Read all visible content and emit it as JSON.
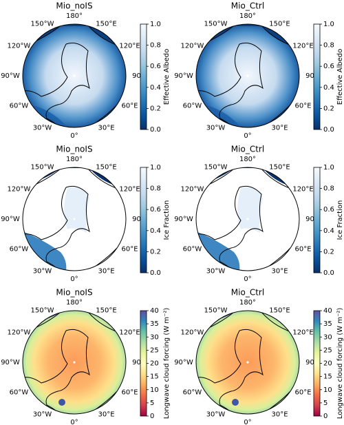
{
  "chart_data": [
    {
      "type": "polar-map",
      "title": "Mio_noIS",
      "colorbar_label": "Effective Albedo",
      "clim": [
        0,
        1
      ],
      "cticks": [
        {
          "value": 0,
          "label": "0.0"
        },
        0.2,
        0.4,
        0.6,
        0.8,
        {
          "value": 1,
          "label": "1.0"
        }
      ],
      "colormap": [
        "#08306b",
        "#08519c",
        "#2171b5",
        "#4292c6",
        "#6baed6",
        "#9ecae1",
        "#c6dbef",
        "#deebf7",
        "#f7fbff"
      ],
      "lon_labels": [
        "180°",
        "150°E",
        "120°E",
        "90°",
        "60°E",
        "30°E",
        "0°",
        "30°W",
        "60°W",
        "90°W",
        "120°W",
        "150°W"
      ]
    },
    {
      "type": "polar-map",
      "title": "Mio_Ctrl",
      "colorbar_label": "Effective Albedo",
      "clim": [
        0,
        1
      ],
      "cticks": [
        {
          "value": 0,
          "label": "0.0"
        },
        0.2,
        0.4,
        0.6,
        0.8,
        {
          "value": 1,
          "label": "1.0"
        }
      ],
      "colormap": [
        "#08306b",
        "#08519c",
        "#2171b5",
        "#4292c6",
        "#6baed6",
        "#9ecae1",
        "#c6dbef",
        "#deebf7",
        "#f7fbff"
      ],
      "lon_labels": [
        "180°",
        "150°E",
        "120°E",
        "90°",
        "60°E",
        "30°E",
        "0°",
        "30°W",
        "60°W",
        "90°W",
        "120°W",
        "150°W"
      ]
    },
    {
      "type": "polar-map",
      "title": "Mio_noIS",
      "colorbar_label": "Ice Fraction",
      "clim": [
        0,
        1
      ],
      "cticks": [
        {
          "value": 0,
          "label": "0.0"
        },
        0.2,
        0.4,
        0.6,
        0.8,
        {
          "value": 1,
          "label": "1.0"
        }
      ],
      "colormap": [
        "#08306b",
        "#08519c",
        "#2171b5",
        "#4292c6",
        "#6baed6",
        "#9ecae1",
        "#c6dbef",
        "#deebf7",
        "#f7fbff"
      ],
      "lon_labels": [
        "180°",
        "150°E",
        "120°E",
        "90°",
        "60°E",
        "30°E",
        "0°",
        "30°W",
        "60°W",
        "90°W",
        "120°W",
        "150°W"
      ]
    },
    {
      "type": "polar-map",
      "title": "Mio_Ctrl",
      "colorbar_label": "Ice Fraction",
      "clim": [
        0,
        1
      ],
      "cticks": [
        {
          "value": 0,
          "label": "0.0"
        },
        0.2,
        0.4,
        0.6,
        0.8,
        {
          "value": 1,
          "label": "1.0"
        }
      ],
      "colormap": [
        "#08306b",
        "#08519c",
        "#2171b5",
        "#4292c6",
        "#6baed6",
        "#9ecae1",
        "#c6dbef",
        "#deebf7",
        "#f7fbff"
      ],
      "lon_labels": [
        "180°",
        "150°E",
        "120°E",
        "90°",
        "60°E",
        "30°E",
        "0°",
        "30°W",
        "60°W",
        "90°W",
        "120°W",
        "150°W"
      ]
    },
    {
      "type": "polar-map",
      "title": "Mio_noIS",
      "colorbar_label": "Longwave cloud forcing (W m⁻²)",
      "clim": [
        0,
        40
      ],
      "cticks": [
        0,
        5,
        10,
        15,
        20,
        25,
        30,
        35,
        40
      ],
      "colormap": [
        "#9e0142",
        "#d53e4f",
        "#f46d43",
        "#fdae61",
        "#fee08b",
        "#ffffbf",
        "#e6f598",
        "#abdda4",
        "#66c2a5",
        "#3288bd",
        "#5e4fa2"
      ],
      "lon_labels": [
        "180°",
        "150°E",
        "120°E",
        "90°",
        "60°E",
        "30°E",
        "0°",
        "30°W",
        "60°W",
        "90°W",
        "120°W",
        "150°W"
      ]
    },
    {
      "type": "polar-map",
      "title": "Mio_Ctrl",
      "colorbar_label": "Longwave cloud forcing (W m⁻²)",
      "clim": [
        0,
        40
      ],
      "cticks": [
        0,
        5,
        10,
        15,
        20,
        25,
        30,
        35,
        40
      ],
      "colormap": [
        "#9e0142",
        "#d53e4f",
        "#f46d43",
        "#fdae61",
        "#fee08b",
        "#ffffbf",
        "#e6f598",
        "#abdda4",
        "#66c2a5",
        "#3288bd",
        "#5e4fa2"
      ],
      "lon_labels": [
        "180°",
        "150°E",
        "120°E",
        "90°",
        "60°E",
        "30°E",
        "0°",
        "30°W",
        "60°W",
        "90°W",
        "120°W",
        "150°W"
      ]
    }
  ]
}
